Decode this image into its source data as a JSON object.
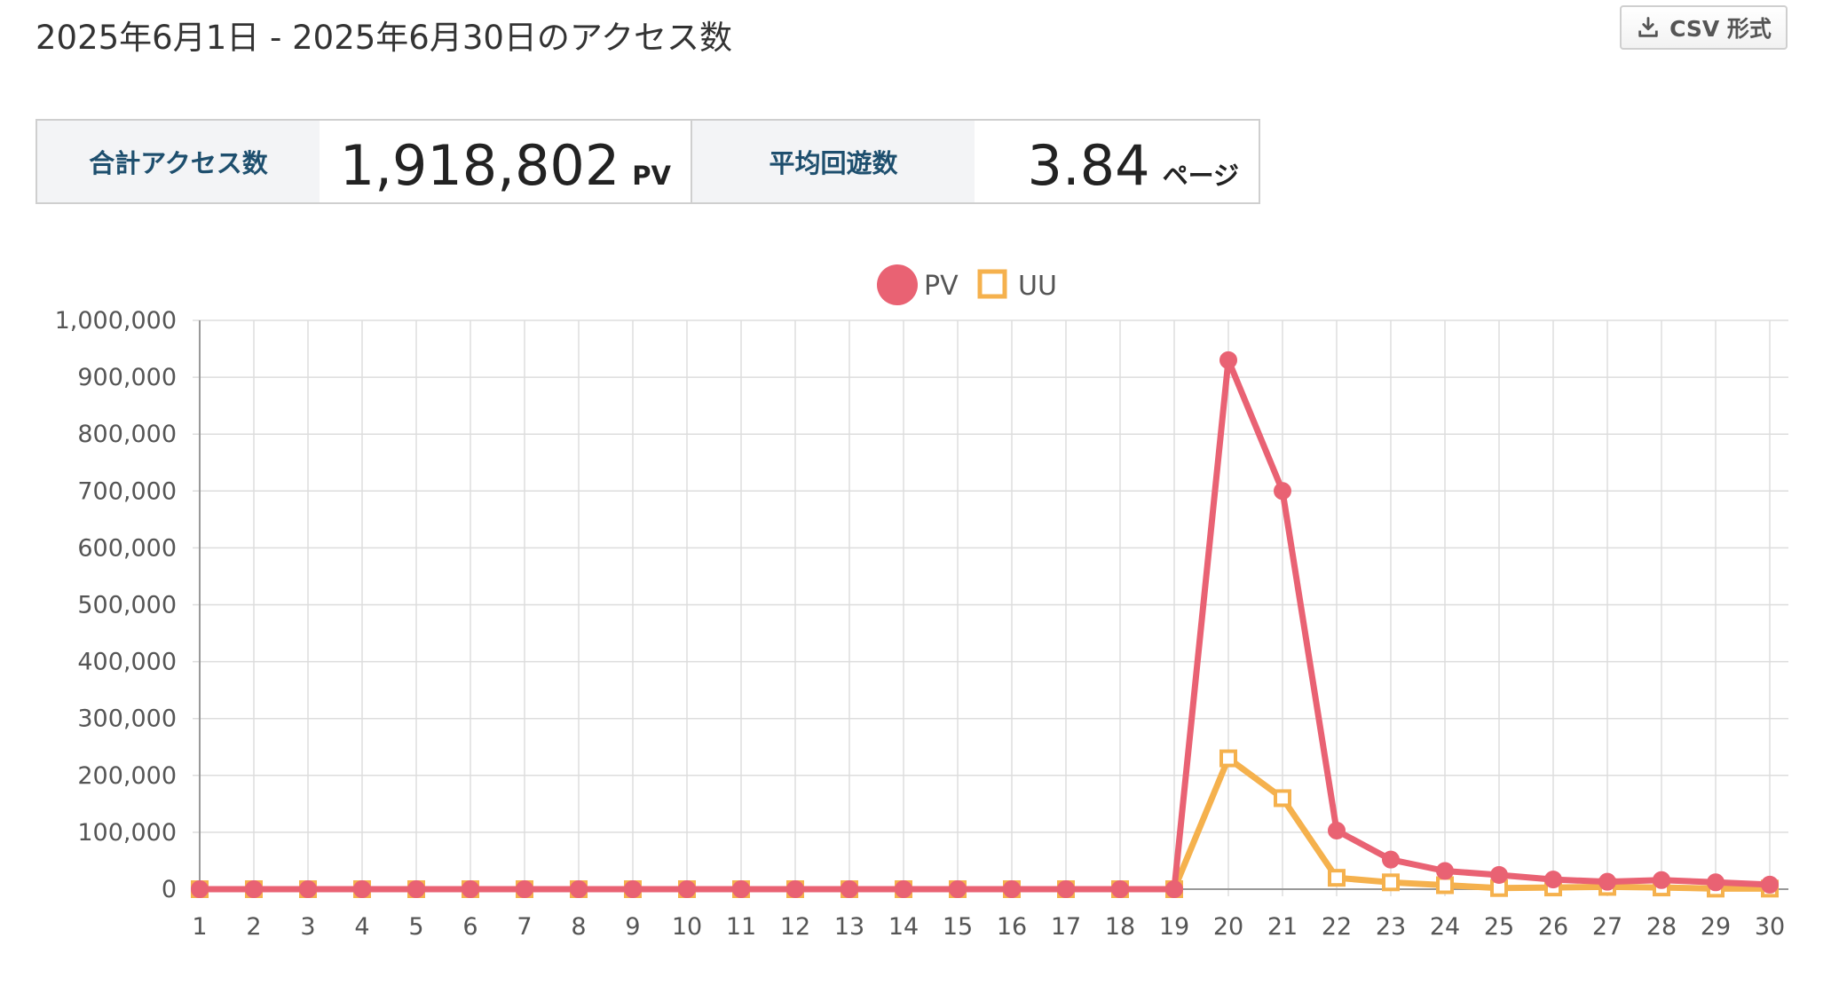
{
  "header": {
    "title": "2025年6月1日 - 2025年6月30日のアクセス数",
    "csv_label": "CSV 形式",
    "csv_icon": "download-icon"
  },
  "summary": {
    "total_label": "合計アクセス数",
    "total_value": "1,918,802",
    "total_unit": "PV",
    "avg_label": "平均回遊数",
    "avg_value": "3.84",
    "avg_unit": "ページ"
  },
  "colors": {
    "pv": "#e96273",
    "uu": "#f5b14d",
    "weekday": "#555555",
    "saturday": "#3b9ad9",
    "sunday": "#e84a5f",
    "grid": "#dddddd"
  },
  "chart_data": {
    "type": "line",
    "x": [
      "1",
      "2",
      "3",
      "4",
      "5",
      "6",
      "7",
      "8",
      "9",
      "10",
      "11",
      "12",
      "13",
      "14",
      "15",
      "16",
      "17",
      "18",
      "19",
      "20",
      "21",
      "22",
      "23",
      "24",
      "25",
      "26",
      "27",
      "28",
      "29",
      "30"
    ],
    "x_label_colors": [
      "sunday",
      "weekday",
      "weekday",
      "weekday",
      "weekday",
      "weekday",
      "saturday",
      "sunday",
      "weekday",
      "weekday",
      "weekday",
      "weekday",
      "weekday",
      "saturday",
      "sunday",
      "weekday",
      "weekday",
      "weekday",
      "weekday",
      "weekday",
      "saturday",
      "sunday",
      "weekday",
      "weekday",
      "weekday",
      "weekday",
      "weekday",
      "saturday",
      "sunday",
      "weekday"
    ],
    "series": [
      {
        "name": "PV",
        "marker": "circle",
        "values": [
          0,
          0,
          0,
          0,
          0,
          0,
          0,
          0,
          0,
          0,
          0,
          0,
          0,
          0,
          0,
          0,
          0,
          0,
          0,
          930000,
          700000,
          103000,
          52000,
          32000,
          25000,
          17000,
          13000,
          16000,
          12000,
          8000
        ]
      },
      {
        "name": "UU",
        "marker": "square",
        "values": [
          0,
          0,
          0,
          0,
          0,
          0,
          0,
          0,
          0,
          0,
          0,
          0,
          0,
          0,
          0,
          0,
          0,
          0,
          0,
          230000,
          160000,
          20000,
          12000,
          7000,
          2000,
          3000,
          4000,
          3000,
          1000,
          1000
        ]
      }
    ],
    "ylim": [
      0,
      1000000
    ],
    "yticks": [
      "0",
      "100,000",
      "200,000",
      "300,000",
      "400,000",
      "500,000",
      "600,000",
      "700,000",
      "800,000",
      "900,000",
      "1,000,000"
    ],
    "legend": "top",
    "grid": true
  }
}
